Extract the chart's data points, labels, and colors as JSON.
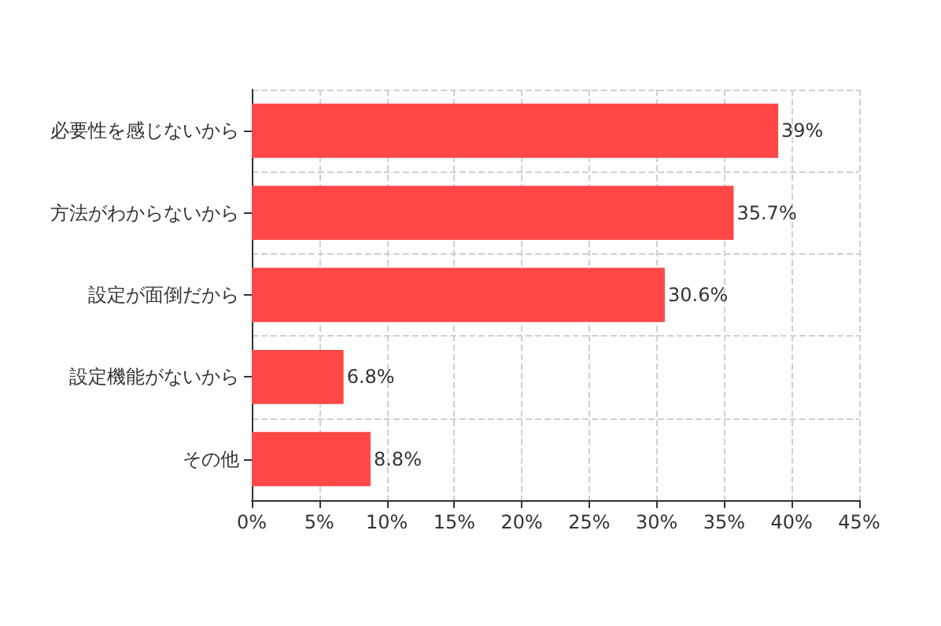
{
  "chart_data": {
    "type": "bar",
    "orientation": "horizontal",
    "categories": [
      "必要性を感じないから",
      "方法がわからないから",
      "設定が面倒だから",
      "設定機能がないから",
      "その他"
    ],
    "values": [
      39,
      35.7,
      30.6,
      6.8,
      8.8
    ],
    "value_labels": [
      "39%",
      "35.7%",
      "30.6%",
      "6.8%",
      "8.8%"
    ],
    "color": "#ff4747",
    "xlim": [
      0,
      45
    ],
    "xticks": [
      {
        "value": 0,
        "label": "0%"
      },
      {
        "value": 5,
        "label": "5%"
      },
      {
        "value": 10,
        "label": "10%"
      },
      {
        "value": 15,
        "label": "15%"
      },
      {
        "value": 20,
        "label": "20%"
      },
      {
        "value": 25,
        "label": "25%"
      },
      {
        "value": 30,
        "label": "30%"
      },
      {
        "value": 35,
        "label": "35%"
      },
      {
        "value": 40,
        "label": "40%"
      },
      {
        "value": 45,
        "label": "45%"
      }
    ],
    "grid": true
  }
}
